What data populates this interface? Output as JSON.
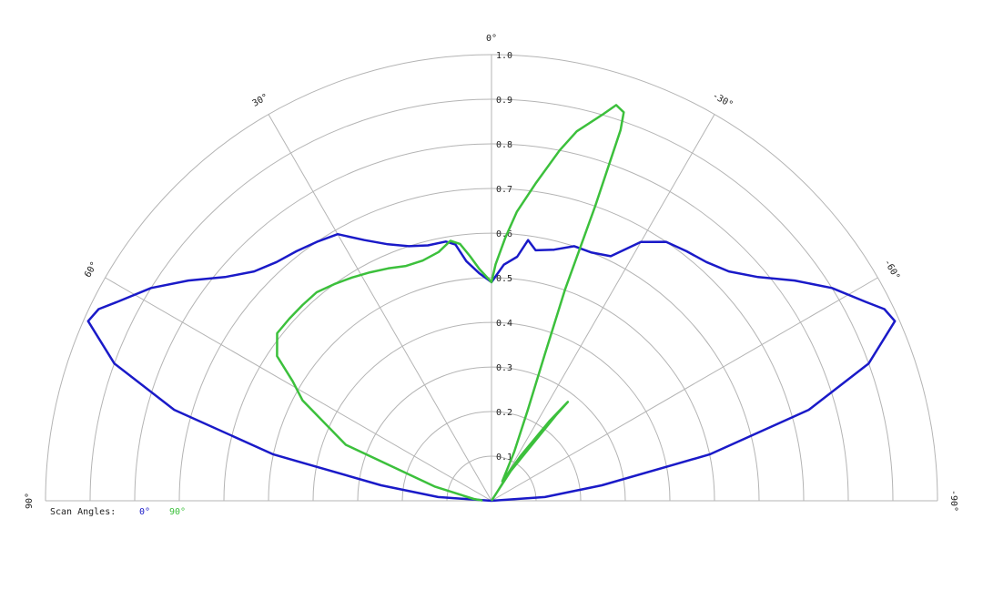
{
  "chart_data": {
    "type": "polar",
    "legend_title": "Scan Angles:",
    "rlim": [
      0,
      1
    ],
    "rticks": [
      0.1,
      0.2,
      0.3,
      0.4,
      0.5,
      0.6,
      0.7,
      0.8,
      0.9,
      {
        "value": 1,
        "label": "1.0"
      }
    ],
    "thetalim": [
      -90,
      90
    ],
    "thetaticks": [
      {
        "value": 0,
        "label": "0°"
      },
      {
        "value": 30,
        "label": "30°"
      },
      {
        "value": 60,
        "label": "60°"
      },
      {
        "value": 90,
        "label": "90°"
      },
      {
        "value": -30,
        "label": "-30°"
      },
      {
        "value": -60,
        "label": "-60°"
      },
      {
        "value": -90,
        "label": "-90°"
      }
    ],
    "series": [
      {
        "name": "0°",
        "color": "#1a1ac8",
        "theta": [
          90,
          86,
          82,
          78,
          74,
          70,
          66,
          64,
          62,
          58,
          54,
          50,
          46,
          42,
          38,
          34,
          30,
          26,
          22,
          18,
          14,
          10,
          8,
          6,
          3,
          0,
          -3,
          -6,
          -8,
          -10,
          -14,
          -18,
          -22,
          -26,
          -30,
          -34,
          -38,
          -42,
          -46,
          -50,
          -54,
          -58,
          -62,
          -64,
          -66,
          -70,
          -74,
          -78,
          -82,
          -86,
          -90
        ],
        "values": [
          0,
          0.12,
          0.25,
          0.5,
          0.74,
          0.9,
          0.99,
          0.98,
          0.95,
          0.9,
          0.84,
          0.78,
          0.74,
          0.72,
          0.71,
          0.7,
          0.69,
          0.65,
          0.62,
          0.6,
          0.59,
          0.59,
          0.58,
          0.54,
          0.51,
          0.49,
          0.53,
          0.55,
          0.59,
          0.57,
          0.58,
          0.6,
          0.6,
          0.61,
          0.67,
          0.7,
          0.71,
          0.72,
          0.74,
          0.78,
          0.84,
          0.9,
          0.95,
          0.98,
          0.99,
          0.9,
          0.74,
          0.5,
          0.25,
          0.12,
          0
        ]
      },
      {
        "name": "90°",
        "color": "#3cc03c",
        "theta": [
          88,
          84,
          76,
          69,
          62,
          59,
          56,
          52,
          48,
          44,
          40,
          36,
          32,
          28,
          24,
          20,
          16,
          12,
          9,
          7,
          5,
          3,
          0,
          -1,
          -3,
          -5,
          -8,
          -11,
          -13,
          -16,
          -17.5,
          -18.8,
          -19.2,
          -19.4,
          -19.2,
          -20,
          -21.8,
          -25,
          -29,
          -33,
          -36,
          -37.7,
          -37,
          -33,
          -30
        ],
        "values": [
          0.02,
          0.04,
          0.13,
          0.35,
          0.48,
          0.52,
          0.58,
          0.61,
          0.61,
          0.61,
          0.61,
          0.6,
          0.59,
          0.58,
          0.57,
          0.56,
          0.56,
          0.57,
          0.59,
          0.58,
          0.55,
          0.52,
          0.49,
          0.53,
          0.59,
          0.65,
          0.72,
          0.8,
          0.85,
          0.9,
          0.93,
          0.92,
          0.88,
          0.7,
          0.5,
          0.35,
          0.22,
          0.12,
          0.05,
          0.12,
          0.22,
          0.28,
          0.24,
          0.08,
          0
        ]
      }
    ]
  }
}
